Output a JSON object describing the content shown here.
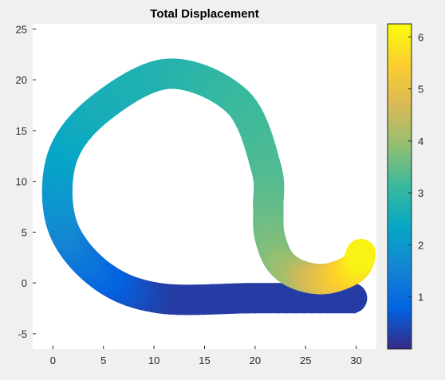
{
  "chart_data": {
    "type": "heatmap",
    "title": "Total Displacement",
    "xlabel": "",
    "ylabel": "",
    "xlim": [
      -2,
      32
    ],
    "ylim": [
      -6.5,
      25.5
    ],
    "xticks": [
      0,
      5,
      10,
      15,
      20,
      25,
      30
    ],
    "yticks": [
      -5,
      0,
      5,
      10,
      15,
      20,
      25
    ],
    "grid": false,
    "colormap": "parula",
    "colorbar": {
      "location": "right",
      "clim": [
        0,
        6.25
      ],
      "ticks": [
        1,
        2,
        3,
        4,
        5,
        6
      ]
    },
    "centerline": [
      {
        "x": 30,
        "y": -1.5,
        "value": 0.25
      },
      {
        "x": 20,
        "y": -1.5,
        "value": 0.25
      },
      {
        "x": 10.5,
        "y": -1.5,
        "value": 0.25
      },
      {
        "x": 4.7,
        "y": 0.8,
        "value": 0.85
      },
      {
        "x": 0.9,
        "y": 5.7,
        "value": 1.6
      },
      {
        "x": 0.9,
        "y": 12.3,
        "value": 2.25
      },
      {
        "x": 4.7,
        "y": 17.2,
        "value": 2.6
      },
      {
        "x": 11.5,
        "y": 20.6,
        "value": 2.8
      },
      {
        "x": 18.3,
        "y": 17.8,
        "value": 3.1
      },
      {
        "x": 21.1,
        "y": 11.3,
        "value": 3.3
      },
      {
        "x": 21.3,
        "y": 7.5,
        "value": 3.45
      },
      {
        "x": 21.4,
        "y": 4.8,
        "value": 3.6
      },
      {
        "x": 22.4,
        "y": 2.2,
        "value": 3.8
      },
      {
        "x": 24.3,
        "y": 0.8,
        "value": 4.15
      },
      {
        "x": 27.0,
        "y": 0.4,
        "value": 4.9
      },
      {
        "x": 29.7,
        "y": 1.4,
        "value": 5.7
      },
      {
        "x": 30.5,
        "y": 2.9,
        "value": 6.15
      }
    ],
    "band_width": 3
  },
  "colors": {
    "parula": [
      "#352a87",
      "#0363e1",
      "#1485d4",
      "#06a7c6",
      "#38b99e",
      "#92bf73",
      "#d9ba56",
      "#fcce2e",
      "#f9fb0e"
    ],
    "figure_bg": "#f0f0f0",
    "axes_bg": "#ffffff",
    "axis_color": "#262626"
  }
}
